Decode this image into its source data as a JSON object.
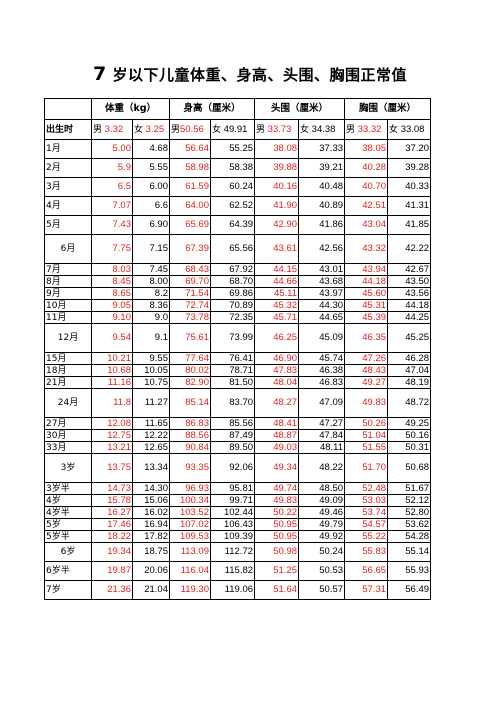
{
  "title": {
    "prefix": "7",
    "rest": " 岁以下儿童体重、身高、头围、胸围正常值"
  },
  "columns": [
    "体重（kg）",
    "身高（厘米）",
    "头围（厘米）",
    "胸围（厘米）"
  ],
  "birth": {
    "label": "出生时",
    "male": "男",
    "female": "女",
    "values": [
      [
        "3.32",
        "3.25"
      ],
      [
        "50.56",
        "49.91"
      ],
      [
        "33.73",
        "34.38"
      ],
      [
        "33.32",
        "33.08"
      ]
    ]
  },
  "rows": [
    {
      "label": "1月",
      "v": [
        "5.00",
        "4.68",
        "56.64",
        "55.25",
        "38.08",
        "37.33",
        "38.05",
        "37.20"
      ]
    },
    {
      "label": "2月",
      "v": [
        "5.9",
        "5.55",
        "58.98",
        "58.38",
        "39.88",
        "39.21",
        "40.28",
        "39.28"
      ]
    },
    {
      "label": "3月",
      "v": [
        "6.5",
        "6.00",
        "61.59",
        "60.24",
        "40.16",
        "40.48",
        "40.70",
        "40.33"
      ]
    },
    {
      "label": "4月",
      "v": [
        "7.07",
        "6.6",
        "64.00",
        "62.52",
        "41.90",
        "40.89",
        "42.51",
        "41.31"
      ]
    },
    {
      "label": "5月",
      "v": [
        "7.43",
        "6.90",
        "65.69",
        "64.39",
        "42.90",
        "41.86",
        "43.04",
        "41.85"
      ]
    },
    {
      "label": "6月",
      "v": [
        "7.75",
        "7.15",
        "67.39",
        "65.56",
        "43.61",
        "42.56",
        "43.32",
        "42.22"
      ]
    },
    {
      "label": "7月",
      "v": [
        "8.03",
        "7.45",
        "68.43",
        "67.92",
        "44.15",
        "43.01",
        "43.94",
        "42.67"
      ]
    },
    {
      "label": "8月",
      "v": [
        "8.45",
        "8.00",
        "69.70",
        "68.70",
        "44.66",
        "43.68",
        "44.18",
        "43.50"
      ]
    },
    {
      "label": "9月",
      "v": [
        "8.65",
        "8.2",
        "71.54",
        "69.86",
        "45.11",
        "43.97",
        "45.60",
        "43.56"
      ]
    },
    {
      "label": "10月",
      "v": [
        "9.05",
        "8.36",
        "72.74",
        "70.89",
        "45.32",
        "44.30",
        "45.31",
        "44.18"
      ]
    },
    {
      "label": "11月",
      "v": [
        "9.10",
        "9.0",
        "73.78",
        "72.35",
        "45.71",
        "44.65",
        "45.39",
        "44.25"
      ]
    },
    {
      "label": "12月",
      "v": [
        "9.54",
        "9.1",
        "75.61",
        "73.99",
        "46.25",
        "45.09",
        "46.35",
        "45.25"
      ]
    },
    {
      "label": "15月",
      "v": [
        "10.21",
        "9.55",
        "77.64",
        "76.41",
        "46.90",
        "45.74",
        "47.26",
        "46.28"
      ]
    },
    {
      "label": "18月",
      "v": [
        "10.68",
        "10.05",
        "80.02",
        "78.71",
        "47.83",
        "46.38",
        "48.43",
        "47.04"
      ]
    },
    {
      "label": "21月",
      "v": [
        "11.16",
        "10.75",
        "82.90",
        "81.50",
        "48.04",
        "46.83",
        "49.27",
        "48.19"
      ]
    },
    {
      "label": "24月",
      "v": [
        "11.8",
        "11.27",
        "85.14",
        "83.70",
        "48.27",
        "47.09",
        "49.83",
        "48.72"
      ]
    },
    {
      "label": "27月",
      "v": [
        "12.08",
        "11.65",
        "86.83",
        "85.56",
        "48.41",
        "47.27",
        "50.26",
        "49.25"
      ]
    },
    {
      "label": "30月",
      "v": [
        "12.75",
        "12.22",
        "88.56",
        "87.49",
        "48.87",
        "47.84",
        "51.04",
        "50.16"
      ]
    },
    {
      "label": "33月",
      "v": [
        "13.21",
        "12.65",
        "90.84",
        "89.50",
        "49.03",
        "48.11",
        "51.55",
        "50.31"
      ]
    },
    {
      "label": "3岁",
      "v": [
        "13.75",
        "13.34",
        "93.35",
        "92.06",
        "49.34",
        "48.22",
        "51.70",
        "50.68"
      ]
    },
    {
      "label": "3岁半",
      "v": [
        "14.73",
        "14.30",
        "96.93",
        "95.81",
        "49.74",
        "48.50",
        "52.48",
        "51.67"
      ]
    },
    {
      "label": "4岁",
      "v": [
        "15.78",
        "15.06",
        "100.34",
        "99.71",
        "49.83",
        "49.09",
        "53.03",
        "52.12"
      ]
    },
    {
      "label": "4岁半",
      "v": [
        "16.27",
        "16.02",
        "103.52",
        "102.44",
        "50.22",
        "49.46",
        "53.74",
        "52.80"
      ]
    },
    {
      "label": "5岁",
      "v": [
        "17.46",
        "16.94",
        "107.02",
        "106.43",
        "50.95",
        "49.79",
        "54.57",
        "53.62"
      ]
    },
    {
      "label": "5岁半",
      "v": [
        "18.22",
        "17.82",
        "109.53",
        "109.39",
        "50.95",
        "49.92",
        "55.22",
        "54.28"
      ]
    },
    {
      "label": "6岁",
      "v": [
        "19.34",
        "18.75",
        "113.09",
        "112.72",
        "50.98",
        "50.24",
        "55.83",
        "55.14"
      ]
    },
    {
      "label": "6岁半",
      "v": [
        "19.87",
        "20.06",
        "116.04",
        "115.82",
        "51.25",
        "50.53",
        "56.65",
        "55.93"
      ]
    },
    {
      "label": "7岁",
      "v": [
        "21.36",
        "21.04",
        "119.30",
        "119.06",
        "51.64",
        "50.57",
        "57.31",
        "56.49"
      ]
    }
  ]
}
